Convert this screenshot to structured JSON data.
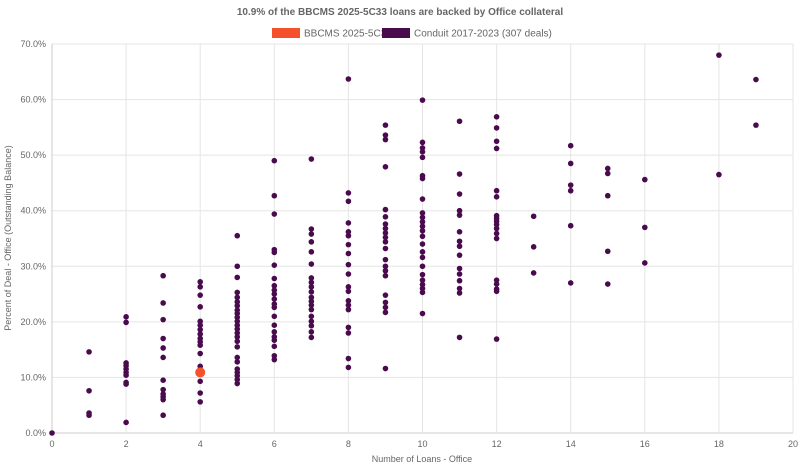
{
  "chart_data": {
    "type": "scatter",
    "title": "10.9% of the BBCMS 2025-5C33 loans are backed by Office collateral",
    "xlabel": "Number of Loans - Office",
    "ylabel": "Percent of Deal - Office (Outstanding Balance)",
    "xlim": [
      0,
      20
    ],
    "ylim": [
      0,
      70
    ],
    "x_ticks": [
      "0",
      "2",
      "4",
      "6",
      "8",
      "10",
      "12",
      "14",
      "16",
      "18",
      "20"
    ],
    "y_ticks": [
      "0.0%",
      "10.0%",
      "20.0%",
      "30.0%",
      "40.0%",
      "50.0%",
      "60.0%",
      "70.0%"
    ],
    "grid": true,
    "legend_position": "top",
    "series": [
      {
        "name": "BBCMS 2025-5C33",
        "color": "#f4512c",
        "points": [
          [
            4,
            10.9
          ]
        ]
      },
      {
        "name": "Conduit 2017-2023 (307 deals)",
        "color": "#4a0a4e",
        "points": [
          [
            0,
            0
          ],
          [
            1,
            14.6
          ],
          [
            1,
            7.6
          ],
          [
            1,
            3.6
          ],
          [
            1,
            3.2
          ],
          [
            2,
            20.9
          ],
          [
            2,
            19.9
          ],
          [
            2,
            12.6
          ],
          [
            2,
            12.1
          ],
          [
            2,
            11.5
          ],
          [
            2,
            10.9
          ],
          [
            2,
            10.4
          ],
          [
            2,
            9.1
          ],
          [
            2,
            8.8
          ],
          [
            2,
            1.9
          ],
          [
            3,
            28.3
          ],
          [
            3,
            23.4
          ],
          [
            3,
            20.4
          ],
          [
            3,
            17.0
          ],
          [
            3,
            15.3
          ],
          [
            3,
            13.6
          ],
          [
            3,
            9.5
          ],
          [
            3,
            7.8
          ],
          [
            3,
            7.0
          ],
          [
            3,
            6.5
          ],
          [
            3,
            6.0
          ],
          [
            3,
            3.2
          ],
          [
            4,
            27.2
          ],
          [
            4,
            26.3
          ],
          [
            4,
            24.8
          ],
          [
            4,
            22.7
          ],
          [
            4,
            20.1
          ],
          [
            4,
            19.4
          ],
          [
            4,
            18.6
          ],
          [
            4,
            17.8
          ],
          [
            4,
            17.0
          ],
          [
            4,
            16.4
          ],
          [
            4,
            15.8
          ],
          [
            4,
            14.3
          ],
          [
            4,
            12.0
          ],
          [
            4,
            9.3
          ],
          [
            4,
            7.2
          ],
          [
            4,
            5.6
          ],
          [
            5,
            35.5
          ],
          [
            5,
            30.0
          ],
          [
            5,
            28.0
          ],
          [
            5,
            25.3
          ],
          [
            5,
            24.4
          ],
          [
            5,
            23.6
          ],
          [
            5,
            22.9
          ],
          [
            5,
            22.1
          ],
          [
            5,
            21.5
          ],
          [
            5,
            20.8
          ],
          [
            5,
            20.1
          ],
          [
            5,
            19.4
          ],
          [
            5,
            18.7
          ],
          [
            5,
            18.0
          ],
          [
            5,
            17.3
          ],
          [
            5,
            16.5
          ],
          [
            5,
            15.5
          ],
          [
            5,
            13.6
          ],
          [
            5,
            12.8
          ],
          [
            5,
            11.5
          ],
          [
            5,
            10.9
          ],
          [
            5,
            10.3
          ],
          [
            5,
            9.6
          ],
          [
            5,
            8.9
          ],
          [
            6,
            49.0
          ],
          [
            6,
            42.7
          ],
          [
            6,
            39.4
          ],
          [
            6,
            33.0
          ],
          [
            6,
            32.5
          ],
          [
            6,
            30.2
          ],
          [
            6,
            27.8
          ],
          [
            6,
            26.5
          ],
          [
            6,
            25.7
          ],
          [
            6,
            25.0
          ],
          [
            6,
            24.1
          ],
          [
            6,
            23.2
          ],
          [
            6,
            22.6
          ],
          [
            6,
            21.0
          ],
          [
            6,
            19.4
          ],
          [
            6,
            18.2
          ],
          [
            6,
            17.3
          ],
          [
            6,
            16.7
          ],
          [
            6,
            15.6
          ],
          [
            6,
            13.9
          ],
          [
            6,
            13.2
          ],
          [
            7,
            49.3
          ],
          [
            7,
            36.7
          ],
          [
            7,
            35.8
          ],
          [
            7,
            34.4
          ],
          [
            7,
            32.6
          ],
          [
            7,
            30.4
          ],
          [
            7,
            27.9
          ],
          [
            7,
            27.1
          ],
          [
            7,
            26.3
          ],
          [
            7,
            25.4
          ],
          [
            7,
            24.4
          ],
          [
            7,
            23.7
          ],
          [
            7,
            23.0
          ],
          [
            7,
            22.2
          ],
          [
            7,
            21.0
          ],
          [
            7,
            20.1
          ],
          [
            7,
            19.3
          ],
          [
            7,
            18.2
          ],
          [
            7,
            17.2
          ],
          [
            8,
            63.7
          ],
          [
            8,
            43.2
          ],
          [
            8,
            41.7
          ],
          [
            8,
            37.8
          ],
          [
            8,
            36.2
          ],
          [
            8,
            35.5
          ],
          [
            8,
            33.9
          ],
          [
            8,
            32.3
          ],
          [
            8,
            30.3
          ],
          [
            8,
            28.6
          ],
          [
            8,
            26.3
          ],
          [
            8,
            25.5
          ],
          [
            8,
            23.8
          ],
          [
            8,
            23.0
          ],
          [
            8,
            22.2
          ],
          [
            8,
            19.0
          ],
          [
            8,
            18.0
          ],
          [
            8,
            13.4
          ],
          [
            8,
            11.8
          ],
          [
            9,
            55.4
          ],
          [
            9,
            53.6
          ],
          [
            9,
            52.8
          ],
          [
            9,
            47.9
          ],
          [
            9,
            40.2
          ],
          [
            9,
            38.9
          ],
          [
            9,
            37.6
          ],
          [
            9,
            36.8
          ],
          [
            9,
            36.0
          ],
          [
            9,
            35.2
          ],
          [
            9,
            34.4
          ],
          [
            9,
            33.2
          ],
          [
            9,
            31.2
          ],
          [
            9,
            30.0
          ],
          [
            9,
            29.2
          ],
          [
            9,
            28.3
          ],
          [
            9,
            24.8
          ],
          [
            9,
            23.5
          ],
          [
            9,
            22.6
          ],
          [
            9,
            21.7
          ],
          [
            9,
            11.6
          ],
          [
            10,
            59.9
          ],
          [
            10,
            52.3
          ],
          [
            10,
            51.3
          ],
          [
            10,
            50.6
          ],
          [
            10,
            49.6
          ],
          [
            10,
            46.3
          ],
          [
            10,
            45.8
          ],
          [
            10,
            42.1
          ],
          [
            10,
            39.6
          ],
          [
            10,
            38.8
          ],
          [
            10,
            38.0
          ],
          [
            10,
            37.2
          ],
          [
            10,
            36.4
          ],
          [
            10,
            35.4
          ],
          [
            10,
            34.0
          ],
          [
            10,
            32.6
          ],
          [
            10,
            31.6
          ],
          [
            10,
            30.0
          ],
          [
            10,
            28.5
          ],
          [
            10,
            27.5
          ],
          [
            10,
            26.7
          ],
          [
            10,
            26.0
          ],
          [
            10,
            25.3
          ],
          [
            10,
            21.5
          ],
          [
            11,
            56.1
          ],
          [
            11,
            46.6
          ],
          [
            11,
            43.0
          ],
          [
            11,
            40.0
          ],
          [
            11,
            39.2
          ],
          [
            11,
            36.2
          ],
          [
            11,
            34.5
          ],
          [
            11,
            33.6
          ],
          [
            11,
            32.0
          ],
          [
            11,
            29.6
          ],
          [
            11,
            28.6
          ],
          [
            11,
            27.4
          ],
          [
            11,
            26.0
          ],
          [
            11,
            25.2
          ],
          [
            11,
            17.2
          ],
          [
            12,
            56.9
          ],
          [
            12,
            54.9
          ],
          [
            12,
            52.5
          ],
          [
            12,
            51.2
          ],
          [
            12,
            43.6
          ],
          [
            12,
            42.5
          ],
          [
            12,
            39.1
          ],
          [
            12,
            38.6
          ],
          [
            12,
            38.1
          ],
          [
            12,
            37.5
          ],
          [
            12,
            36.8
          ],
          [
            12,
            35.9
          ],
          [
            12,
            35.0
          ],
          [
            12,
            27.5
          ],
          [
            12,
            26.8
          ],
          [
            12,
            25.9
          ],
          [
            12,
            25.5
          ],
          [
            12,
            16.9
          ],
          [
            13,
            39.0
          ],
          [
            13,
            33.5
          ],
          [
            13,
            28.8
          ],
          [
            14,
            51.7
          ],
          [
            14,
            48.5
          ],
          [
            14,
            44.6
          ],
          [
            14,
            43.6
          ],
          [
            14,
            37.3
          ],
          [
            14,
            27.0
          ],
          [
            15,
            47.6
          ],
          [
            15,
            46.7
          ],
          [
            15,
            42.7
          ],
          [
            15,
            32.7
          ],
          [
            15,
            26.8
          ],
          [
            16,
            45.6
          ],
          [
            16,
            37.0
          ],
          [
            16,
            30.6
          ],
          [
            18,
            68.0
          ],
          [
            18,
            46.5
          ],
          [
            19,
            63.6
          ],
          [
            19,
            55.4
          ]
        ]
      }
    ]
  }
}
